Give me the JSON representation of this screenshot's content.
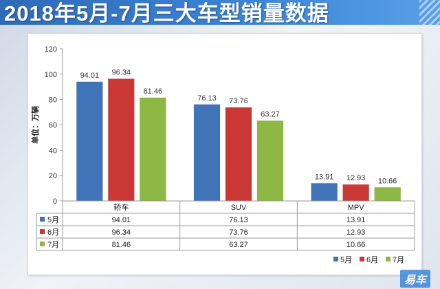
{
  "page": {
    "title": "2018年5月-7月三大车型销量数据"
  },
  "watermark": {
    "text": "易车"
  },
  "chart_data": {
    "type": "bar",
    "title": "2018年5月-7月三大车型销量数据",
    "ylabel": "单位：万辆",
    "xlabel": "",
    "categories": [
      "轿车",
      "SUV",
      "MPV"
    ],
    "series": [
      {
        "name": "5月",
        "color": "#3f74b8",
        "values": [
          94.01,
          76.13,
          13.91
        ]
      },
      {
        "name": "6月",
        "color": "#c93835",
        "values": [
          96.34,
          73.76,
          12.93
        ]
      },
      {
        "name": "7月",
        "color": "#8db843",
        "values": [
          81.46,
          63.27,
          10.66
        ]
      }
    ],
    "ylim": [
      0,
      120
    ],
    "yticks": [
      0,
      20,
      40,
      60,
      80,
      100,
      120
    ],
    "grid": false,
    "data_table": true,
    "legend": "bottom-right"
  }
}
